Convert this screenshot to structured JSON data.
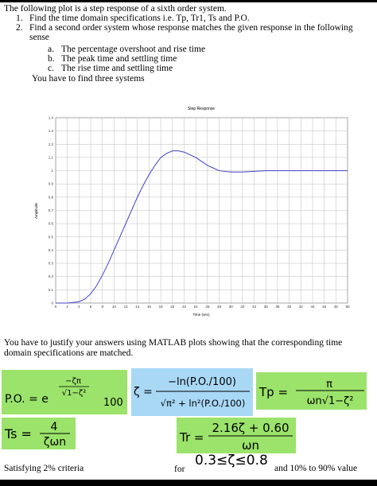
{
  "text": {
    "intro": "The following plot is a step response of a sixth order system.",
    "items": [
      {
        "number": "1.",
        "text": "Find the time domain specifications i.e. Tp, Tr1, Ts and P.O."
      },
      {
        "number": "2.",
        "text": "Find a second order system whose response matches the given response in the following",
        "cont": "sense"
      }
    ],
    "subitems": [
      {
        "letter": "a.",
        "text": "The percentage overshoot and rise time"
      },
      {
        "letter": "b.",
        "text": "The peak time and settling time"
      },
      {
        "letter": "c.",
        "text": "The rise time and settling time"
      }
    ],
    "note": "You have to find three systems",
    "justify": [
      "You have to justify your answers using MATLAB plots showing that the corresponding time",
      "domain specifications are matched."
    ]
  },
  "chart_data": {
    "type": "line",
    "title": "Step Response",
    "x_label": "Time (sec)",
    "y_label": "Amplitude",
    "x": [
      0,
      2,
      4,
      5,
      6,
      7,
      8,
      9,
      10,
      11,
      12,
      13,
      14,
      15,
      16,
      17,
      18,
      19,
      20,
      21,
      22,
      23,
      24,
      25,
      26,
      27,
      28,
      30,
      32,
      34,
      36,
      38,
      40,
      45,
      50
    ],
    "values": [
      0,
      0,
      0.01,
      0.03,
      0.07,
      0.13,
      0.21,
      0.3,
      0.4,
      0.5,
      0.6,
      0.7,
      0.8,
      0.89,
      0.97,
      1.04,
      1.1,
      1.13,
      1.15,
      1.15,
      1.14,
      1.12,
      1.1,
      1.07,
      1.04,
      1.02,
      1.0,
      0.99,
      0.99,
      0.995,
      1,
      1,
      1,
      1,
      1
    ],
    "color": "#4040c8",
    "xlim": [
      0,
      50
    ],
    "ylim": [
      0,
      1.4
    ],
    "xticks": [
      0,
      2,
      4,
      6,
      8,
      10,
      12,
      14,
      16,
      18,
      20,
      22,
      24,
      26,
      28,
      30,
      32,
      34,
      36,
      38,
      40,
      42,
      44,
      46,
      48,
      50
    ],
    "yticks": [
      0,
      0.1,
      0.2,
      0.3,
      0.4,
      0.5,
      0.6,
      0.7,
      0.8,
      0.9,
      1,
      1.1,
      1.2,
      1.3,
      1.4
    ],
    "grid": true
  },
  "formulas": {
    "po": {
      "lhs": "P.O. = e",
      "num": "−ζπ",
      "den": "√1−ζ²",
      "factor": "100"
    },
    "zeta": {
      "lhs": "ζ =",
      "num": "−ln(P.O./100)",
      "den": "√π² + ln²(P.O./100)"
    },
    "tp": {
      "lhs": "Tp =",
      "num": "π",
      "den": "ωn√1−ζ²"
    },
    "ts": {
      "lhs": "Ts =",
      "num": "4",
      "den": "ζωn"
    },
    "tr": {
      "lhs": "Tr =",
      "num": "2.16ζ + 0.60",
      "den": "ωn"
    }
  },
  "footer": {
    "left": "Satisfying 2% criteria",
    "for": "for",
    "range": "0.3≤ζ≤0.8",
    "right": "and 10% to 90% value"
  }
}
